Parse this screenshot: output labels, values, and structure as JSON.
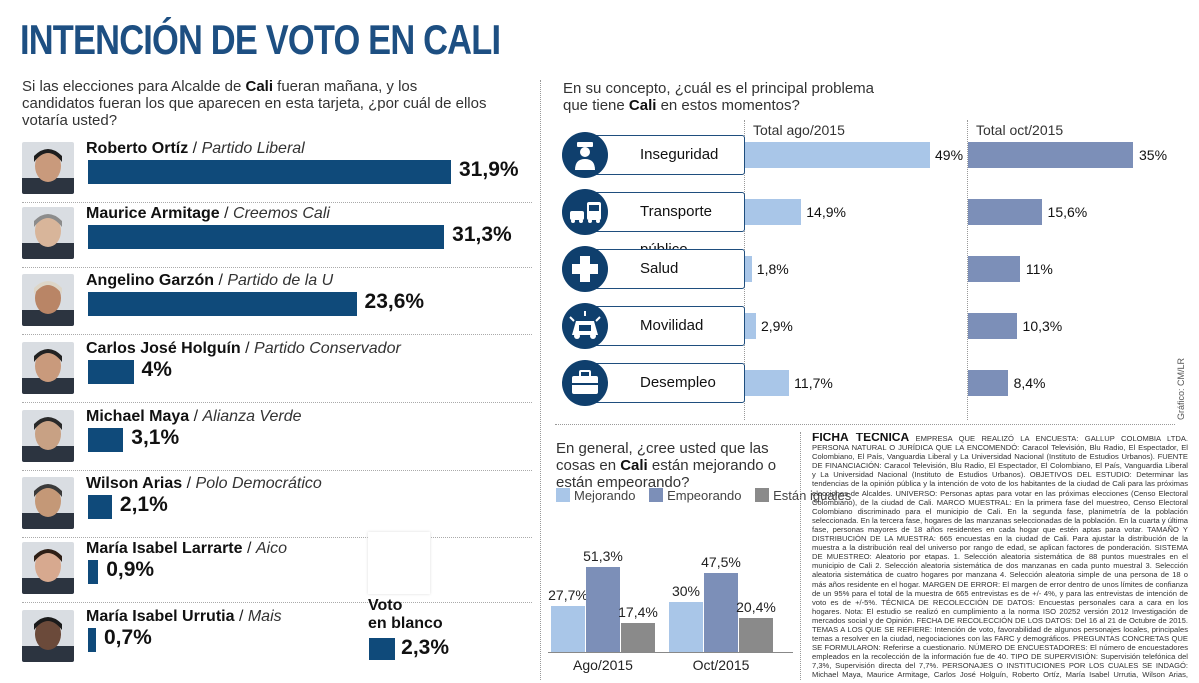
{
  "title": "INTENCIÓN DE VOTO EN CALI",
  "credit": "Gráfico: CM/LR",
  "colors": {
    "dark_blue": "#0f4a7a",
    "light_blue": "#a9c6e8",
    "mid_blue": "#7c8fb8",
    "gray": "#8a8a8a"
  },
  "chart_data": [
    {
      "type": "bar",
      "question_pre": "Si las elecciones para Alcalde de ",
      "question_bold": "Cali",
      "question_post": " fueran mañana, y los candidatos fueran los que aparecen en esta tarjeta, ¿por cuál de ellos votaría usted?",
      "categories": [
        "Roberto Ortíz",
        "Maurice Armitage",
        "Angelino Garzón",
        "Carlos José  Holguín",
        "Michael Maya",
        "Wilson Arias",
        "María Isabel Larrarte",
        "María Isabel Urrutia",
        "Voto en blanco"
      ],
      "parties": [
        "Partido Liberal",
        "Creemos Cali",
        "Partido de la U",
        "Partido Conservador",
        "Alianza Verde",
        "Polo Democrático",
        "Aico",
        "Mais",
        ""
      ],
      "values": [
        31.9,
        31.3,
        23.6,
        4,
        3.1,
        2.1,
        0.9,
        0.7,
        2.3
      ],
      "labels": [
        "31,9%",
        "31,3%",
        "23,6%",
        "4%",
        "3,1%",
        "2,1%",
        "0,9%",
        "0,7%",
        "2,3%"
      ],
      "blank_label_1": "Voto",
      "blank_label_2": "en blanco"
    },
    {
      "type": "bar",
      "question_pre": "En su concepto, ¿cuál es el principal problema que tiene ",
      "question_bold": "Cali",
      "question_post": " en estos momentos?",
      "categories": [
        "Inseguridad",
        "Transporte público",
        "Salud",
        "Movilidad",
        "Desempleo"
      ],
      "icons": [
        "police-officer-icon",
        "bus-car-icon",
        "medical-cross-icon",
        "traffic-icon",
        "briefcase-icon"
      ],
      "series": [
        {
          "name": "Total ago/2015",
          "values": [
            49,
            14.9,
            1.8,
            2.9,
            11.7
          ],
          "labels": [
            "49%",
            "14,9%",
            "1,8%",
            "2,9%",
            "11,7%"
          ]
        },
        {
          "name": "Total oct/2015",
          "values": [
            35,
            15.6,
            11,
            10.3,
            8.4
          ],
          "labels": [
            "35%",
            "15,6%",
            "11%",
            "10,3%",
            "8,4%"
          ]
        }
      ]
    },
    {
      "type": "bar",
      "question_pre": "En general, ¿cree usted que las cosas en ",
      "question_bold": "Cali",
      "question_post": " están mejorando o están empeorando?",
      "categories": [
        "Ago/2015",
        "Oct/2015"
      ],
      "series": [
        {
          "name": "Mejorando",
          "values": [
            27.7,
            30
          ],
          "labels": [
            "27,7%",
            "30%"
          ]
        },
        {
          "name": "Empeorando",
          "values": [
            51.3,
            47.5
          ],
          "labels": [
            "51,3%",
            "47,5%"
          ]
        },
        {
          "name": "Están iguales",
          "values": [
            17.4,
            20.4
          ],
          "labels": [
            "17,4%",
            "20,4%"
          ]
        }
      ]
    }
  ],
  "ficha": {
    "heading": "FICHA TÉCNICA",
    "text": "EMPRESA QUE REALIZÓ LA ENCUESTA: GALLUP COLOMBIA LTDA. PERSONA NATURAL O JURÍDICA QUE LA ENCOMENDÓ: Caracol Televisión, Blu Radio, El Espectador, El Colombiano, El País, Vanguardia Liberal y La Universidad Nacional (Instituto de Estudios Urbanos). FUENTE DE FINANCIACIÓN: Caracol Televisión, Blu Radio, El Espectador, El Colombiano, El País, Vanguardia Liberal y La Universidad Nacional (Instituto de Estudios Urbanos). OBJETIVOS DEL ESTUDIO: Determinar las tendencias de la opinión pública y la intención de voto de los habitantes de la ciudad de Cali para las próximas elecciones de Alcaldes. UNIVERSO: Personas aptas para votar en las próximas elecciones (Censo Electoral Colombiano), de la ciudad de Cali. MARCO MUESTRAL: En la primera fase del muestreo, Censo Electoral Colombiano discriminado para el municipio de Cali. En la segunda fase, planimetría de la población seleccionada. En la tercera fase, hogares de las manzanas seleccionadas de la población. En la cuarta y última fase, personas mayores de 18 años residentes en cada hogar que estén aptas para votar. TAMAÑO Y DISTRIBUCIÓN DE LA MUESTRA: 665 encuestas en la ciudad de Cali. Para ajustar la distribución de la muestra a la distribución real del universo por rango de edad, se aplican factores de ponderación. SISTEMA DE MUESTREO: Aleatorio por etapas. 1. Selección aleatoria sistemática de 88 puntos muestrales en el municipio de Cali 2. Selección aleatoria sistemática de dos manzanas en cada punto muestral 3. Selección aleatoria sistemática de cuatro hogares por manzana 4. Selección aleatoria simple de una persona de 18 o más años residente en el hogar. MARGEN DE ERROR: El margen de error dentro de unos límites de confianza de un 95% para el total de la muestra de 665 entrevistas es de +/- 4%, y para las entrevistas de intención de voto es de +/-5%. TÉCNICA DE RECOLECCIÓN DE DATOS: Encuestas personales cara a cara en los hogares. Nota: El estudio se realizó en cumplimiento a la norma ISO 20252 versión 2012 Investigación de mercados social y de Opinión. FECHA DE RECOLECCIÓN DE LOS DATOS: Del 16 al 21 de Octubre de 2015. TEMAS A LOS QUE SE REFIERE: Intención de voto, favorabilidad de algunos personajes locales, principales temas a resolver en la ciudad, negociaciones con las FARC y demográficos. PREGUNTAS CONCRETAS QUE SE FORMULARON: Referirse a cuestionario. NÚMERO DE ENCUESTADORES: El número de encuestadores empleados en la recolección de la información fue de 40. TIPO DE SUPERVISIÓN: Supervisión telefónica del 7,3%, Supervisión directa del 7,7%. PERSONAJES O INSTITUCIONES POR LOS CUALES SE INDAGÓ: Michael Maya, Maurice Armitage, Carlos José Holguín, Roberto Ortíz, María Isabel Urrutia, Wilson Arias, Angelino Garzón, María Isabel Larrarte"
  }
}
